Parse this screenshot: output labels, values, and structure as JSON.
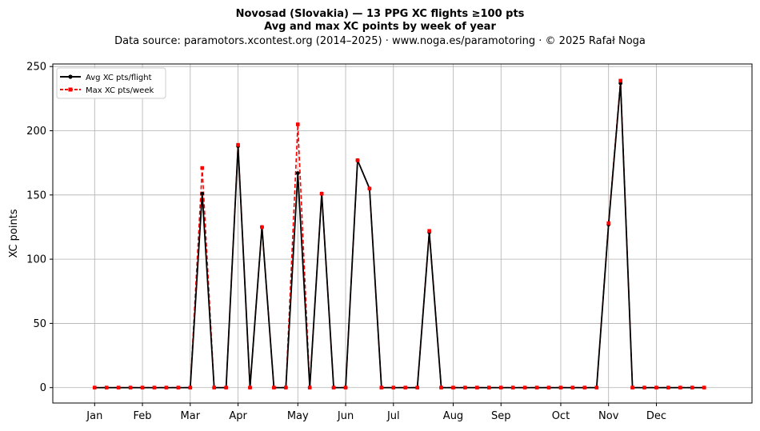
{
  "chart_data": {
    "type": "line",
    "title": "Novosad (Slovakia)  —  13 PPG XC flights ≥100 pts",
    "subtitle": "Avg and max XC points by week of year",
    "source": "Data source: paramotors.xcontest.org (2014–2025)  ·  www.noga.es/paramotoring  ·  © 2025 Rafał Noga",
    "xlabel": "",
    "ylabel": "XC points",
    "xlim": [
      -2.5,
      56
    ],
    "ylim": [
      -12,
      252
    ],
    "y_ticks": [
      0,
      50,
      100,
      150,
      200,
      250
    ],
    "x_ticks": [
      {
        "label": "Jan",
        "week": 1
      },
      {
        "label": "Feb",
        "week": 5
      },
      {
        "label": "Mar",
        "week": 9
      },
      {
        "label": "Apr",
        "week": 13
      },
      {
        "label": "May",
        "week": 18
      },
      {
        "label": "Jun",
        "week": 22
      },
      {
        "label": "Jul",
        "week": 26
      },
      {
        "label": "Aug",
        "week": 31
      },
      {
        "label": "Sep",
        "week": 35
      },
      {
        "label": "Oct",
        "week": 40
      },
      {
        "label": "Nov",
        "week": 44
      },
      {
        "label": "Dec",
        "week": 48
      }
    ],
    "grid": true,
    "legend_position": "top-left",
    "x": [
      1,
      2,
      3,
      4,
      5,
      6,
      7,
      8,
      9,
      10,
      11,
      12,
      13,
      14,
      15,
      16,
      17,
      18,
      19,
      20,
      21,
      22,
      23,
      24,
      25,
      26,
      27,
      28,
      29,
      30,
      31,
      32,
      33,
      34,
      35,
      36,
      37,
      38,
      39,
      40,
      41,
      42,
      43,
      44,
      45,
      46,
      47,
      48,
      49,
      50,
      51,
      52
    ],
    "series": [
      {
        "name": "Avg XC pts/flight",
        "color": "#000000",
        "style": "solid",
        "marker": "circle",
        "values": [
          0,
          0,
          0,
          0,
          0,
          0,
          0,
          0,
          0,
          151,
          0,
          0,
          188,
          0,
          125,
          0,
          0,
          167,
          0,
          151,
          0,
          0,
          177,
          155,
          0,
          0,
          0,
          0,
          121,
          0,
          0,
          0,
          0,
          0,
          0,
          0,
          0,
          0,
          0,
          0,
          0,
          0,
          0,
          127,
          237,
          0,
          0,
          0,
          0,
          0,
          0,
          0
        ]
      },
      {
        "name": "Max XC pts/week",
        "color": "#ff0000",
        "style": "dashed",
        "marker": "square",
        "values": [
          0,
          0,
          0,
          0,
          0,
          0,
          0,
          0,
          0,
          171,
          0,
          0,
          189,
          0,
          125,
          0,
          0,
          205,
          0,
          151,
          0,
          0,
          177,
          155,
          0,
          0,
          0,
          0,
          122,
          0,
          0,
          0,
          0,
          0,
          0,
          0,
          0,
          0,
          0,
          0,
          0,
          0,
          0,
          128,
          239,
          0,
          0,
          0,
          0,
          0,
          0,
          0
        ]
      }
    ]
  }
}
